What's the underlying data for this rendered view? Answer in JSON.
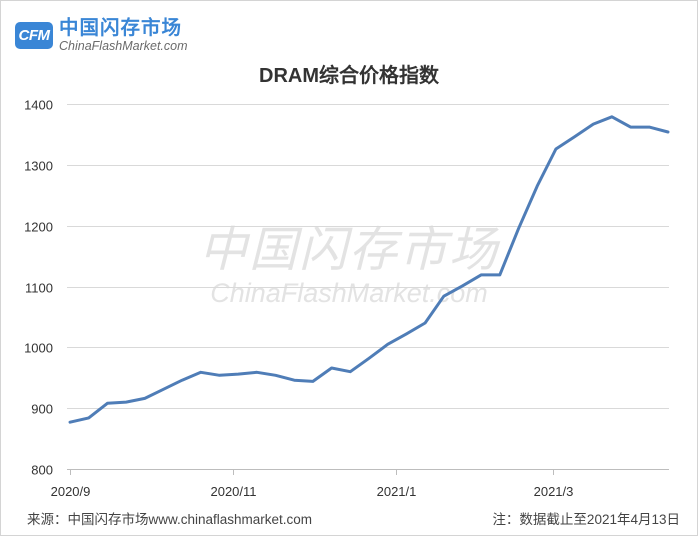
{
  "header": {
    "logo_mark": "CFM",
    "brand_name": "中国闪存市场",
    "brand_site": "ChinaFlashMarket.com",
    "brand_color": "#3a86d6"
  },
  "watermark": {
    "name": "中国闪存市场",
    "site": "ChinaFlashMarket.com"
  },
  "chart_data": {
    "type": "line",
    "title": "DRAM综合价格指数",
    "ylim": [
      800,
      1400
    ],
    "yticks": [
      800,
      900,
      1000,
      1100,
      1200,
      1300,
      1400
    ],
    "xlim": [
      "2020-09-01",
      "2021-04-13"
    ],
    "xticks": [
      "2020/9",
      "2020/11",
      "2021/1",
      "2021/3"
    ],
    "grid": true,
    "series": [
      {
        "color": "#4f7db7",
        "x": [
          "2020-09-01",
          "2020-09-08",
          "2020-09-15",
          "2020-09-22",
          "2020-09-29",
          "2020-10-06",
          "2020-10-13",
          "2020-10-20",
          "2020-10-27",
          "2020-11-03",
          "2020-11-10",
          "2020-11-17",
          "2020-11-24",
          "2020-12-01",
          "2020-12-08",
          "2020-12-15",
          "2020-12-22",
          "2020-12-29",
          "2021-01-05",
          "2021-01-12",
          "2021-01-19",
          "2021-01-26",
          "2021-02-02",
          "2021-02-09",
          "2021-02-16",
          "2021-02-23",
          "2021-03-02",
          "2021-03-09",
          "2021-03-16",
          "2021-03-23",
          "2021-03-30",
          "2021-04-06",
          "2021-04-13"
        ],
        "y": [
          877,
          884,
          908,
          910,
          916,
          931,
          946,
          959,
          954,
          956,
          959,
          954,
          946,
          944,
          966,
          960,
          982,
          1005,
          1022,
          1040,
          1084,
          1101,
          1119,
          1119,
          1195,
          1265,
          1326,
          1346,
          1367,
          1379,
          1362,
          1362,
          1354
        ]
      }
    ]
  },
  "footer": {
    "source": "来源：中国闪存市场www.chinaflashmarket.com",
    "note": "注：数据截止至2021年4月13日"
  }
}
